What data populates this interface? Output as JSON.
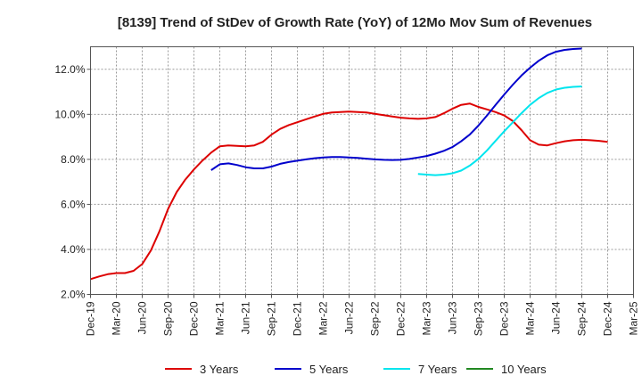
{
  "chart_data": {
    "type": "line",
    "title": "[8139]  Trend of StDev of Growth Rate (YoY) of 12Mo Mov Sum of Revenues",
    "xlabel": "",
    "ylabel": "",
    "ylim": [
      2.0,
      13.0
    ],
    "y_ticks": [
      2.0,
      4.0,
      6.0,
      8.0,
      10.0,
      12.0
    ],
    "y_tick_labels": [
      "2.0%",
      "4.0%",
      "6.0%",
      "8.0%",
      "10.0%",
      "12.0%"
    ],
    "x_tick_labels": [
      "Dec-19",
      "Mar-20",
      "Jun-20",
      "Sep-20",
      "Dec-20",
      "Mar-21",
      "Jun-21",
      "Sep-21",
      "Dec-21",
      "Mar-22",
      "Jun-22",
      "Sep-22",
      "Dec-22",
      "Mar-23",
      "Jun-23",
      "Sep-23",
      "Dec-23",
      "Mar-24",
      "Jun-24",
      "Sep-24",
      "Dec-24",
      "Mar-25"
    ],
    "grid": true,
    "legend_position": "bottom",
    "series": [
      {
        "name": "3 Years",
        "color": "#dd0000",
        "start_index": 0,
        "values": [
          2.68,
          2.8,
          2.9,
          2.95,
          2.95,
          3.05,
          3.35,
          3.95,
          4.8,
          5.8,
          6.55,
          7.1,
          7.55,
          7.95,
          8.3,
          8.58,
          8.62,
          8.6,
          8.58,
          8.62,
          8.78,
          9.1,
          9.35,
          9.52,
          9.65,
          9.78,
          9.9,
          10.02,
          10.08,
          10.1,
          10.12,
          10.1,
          10.08,
          10.02,
          9.96,
          9.9,
          9.85,
          9.82,
          9.8,
          9.82,
          9.88,
          10.05,
          10.25,
          10.42,
          10.48,
          10.33,
          10.22,
          10.1,
          9.95,
          9.7,
          9.3,
          8.85,
          8.65,
          8.62,
          8.72,
          8.8,
          8.85,
          8.87,
          8.85,
          8.82,
          8.78
        ]
      },
      {
        "name": "5 Years",
        "color": "#0000cc",
        "start_index": 14,
        "values": [
          7.52,
          7.78,
          7.82,
          7.75,
          7.65,
          7.6,
          7.6,
          7.68,
          7.8,
          7.88,
          7.94,
          8.0,
          8.05,
          8.08,
          8.1,
          8.1,
          8.08,
          8.06,
          8.03,
          8.0,
          7.98,
          7.97,
          7.98,
          8.02,
          8.08,
          8.15,
          8.25,
          8.38,
          8.55,
          8.8,
          9.1,
          9.5,
          9.95,
          10.42,
          10.88,
          11.32,
          11.72,
          12.07,
          12.38,
          12.62,
          12.78,
          12.86,
          12.9,
          12.92
        ]
      },
      {
        "name": "7 Years",
        "color": "#00e5ee",
        "start_index": 38,
        "values": [
          7.35,
          7.32,
          7.3,
          7.32,
          7.38,
          7.5,
          7.72,
          8.02,
          8.4,
          8.82,
          9.25,
          9.65,
          10.05,
          10.42,
          10.72,
          10.95,
          11.1,
          11.18,
          11.22,
          11.24
        ]
      },
      {
        "name": "10 Years",
        "color": "#228822",
        "start_index": 0,
        "values": []
      }
    ]
  }
}
